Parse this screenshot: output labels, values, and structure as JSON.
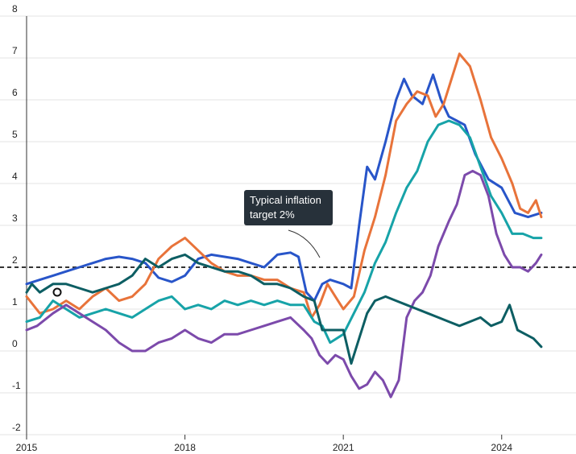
{
  "chart_data": {
    "type": "line",
    "title": "",
    "xlabel": "",
    "ylabel": "",
    "xlim": [
      2015.0,
      2024.95
    ],
    "ylim": [
      -2,
      8
    ],
    "y_ticks": [
      "-2",
      "-1",
      "0",
      "1",
      "2",
      "3",
      "4",
      "5",
      "6",
      "7",
      "8"
    ],
    "x_ticks": [
      "2015",
      "2018",
      "2021",
      "2024"
    ],
    "grid": true,
    "reference_line": {
      "value": 2,
      "style": "dashed"
    },
    "annotation": {
      "line1": "Typical inflation",
      "line2": "target 2%"
    },
    "series": [
      {
        "color": "#2855c9",
        "points": [
          [
            2015.0,
            1.6
          ],
          [
            2015.25,
            1.7
          ],
          [
            2015.5,
            1.8
          ],
          [
            2015.75,
            1.9
          ],
          [
            2016.0,
            2.0
          ],
          [
            2016.25,
            2.1
          ],
          [
            2016.5,
            2.2
          ],
          [
            2016.75,
            2.25
          ],
          [
            2017.0,
            2.2
          ],
          [
            2017.25,
            2.1
          ],
          [
            2017.5,
            1.75
          ],
          [
            2017.75,
            1.65
          ],
          [
            2018.0,
            1.8
          ],
          [
            2018.25,
            2.2
          ],
          [
            2018.5,
            2.3
          ],
          [
            2018.75,
            2.25
          ],
          [
            2019.0,
            2.2
          ],
          [
            2019.25,
            2.1
          ],
          [
            2019.5,
            2.0
          ],
          [
            2019.75,
            2.3
          ],
          [
            2020.0,
            2.35
          ],
          [
            2020.15,
            2.25
          ],
          [
            2020.3,
            1.4
          ],
          [
            2020.45,
            1.2
          ],
          [
            2020.6,
            1.6
          ],
          [
            2020.75,
            1.7
          ],
          [
            2021.0,
            1.6
          ],
          [
            2021.15,
            1.5
          ],
          [
            2021.3,
            3.0
          ],
          [
            2021.45,
            4.4
          ],
          [
            2021.6,
            4.1
          ],
          [
            2021.8,
            5.0
          ],
          [
            2022.0,
            6.0
          ],
          [
            2022.15,
            6.5
          ],
          [
            2022.3,
            6.1
          ],
          [
            2022.5,
            5.9
          ],
          [
            2022.7,
            6.6
          ],
          [
            2022.85,
            6.0
          ],
          [
            2023.0,
            5.6
          ],
          [
            2023.15,
            5.5
          ],
          [
            2023.3,
            5.4
          ],
          [
            2023.5,
            4.7
          ],
          [
            2023.75,
            4.1
          ],
          [
            2024.0,
            3.9
          ],
          [
            2024.25,
            3.3
          ],
          [
            2024.5,
            3.2
          ],
          [
            2024.75,
            3.3
          ]
        ]
      },
      {
        "color": "#e8733a",
        "points": [
          [
            2015.0,
            1.3
          ],
          [
            2015.25,
            0.9
          ],
          [
            2015.5,
            1.0
          ],
          [
            2015.75,
            1.2
          ],
          [
            2016.0,
            1.0
          ],
          [
            2016.25,
            1.3
          ],
          [
            2016.5,
            1.5
          ],
          [
            2016.75,
            1.2
          ],
          [
            2017.0,
            1.3
          ],
          [
            2017.25,
            1.6
          ],
          [
            2017.5,
            2.2
          ],
          [
            2017.75,
            2.5
          ],
          [
            2018.0,
            2.7
          ],
          [
            2018.25,
            2.4
          ],
          [
            2018.5,
            2.1
          ],
          [
            2018.75,
            1.9
          ],
          [
            2019.0,
            1.8
          ],
          [
            2019.25,
            1.8
          ],
          [
            2019.5,
            1.7
          ],
          [
            2019.75,
            1.7
          ],
          [
            2020.0,
            1.5
          ],
          [
            2020.25,
            1.4
          ],
          [
            2020.4,
            0.8
          ],
          [
            2020.55,
            1.1
          ],
          [
            2020.7,
            1.6
          ],
          [
            2020.85,
            1.3
          ],
          [
            2021.0,
            1.0
          ],
          [
            2021.2,
            1.3
          ],
          [
            2021.4,
            2.4
          ],
          [
            2021.6,
            3.2
          ],
          [
            2021.8,
            4.2
          ],
          [
            2022.0,
            5.5
          ],
          [
            2022.2,
            5.9
          ],
          [
            2022.4,
            6.2
          ],
          [
            2022.6,
            6.1
          ],
          [
            2022.75,
            5.6
          ],
          [
            2022.9,
            5.9
          ],
          [
            2023.05,
            6.5
          ],
          [
            2023.2,
            7.1
          ],
          [
            2023.4,
            6.8
          ],
          [
            2023.6,
            6.0
          ],
          [
            2023.8,
            5.1
          ],
          [
            2024.0,
            4.6
          ],
          [
            2024.2,
            4.0
          ],
          [
            2024.35,
            3.4
          ],
          [
            2024.5,
            3.3
          ],
          [
            2024.65,
            3.6
          ],
          [
            2024.75,
            3.2
          ]
        ]
      },
      {
        "color": "#17a3a8",
        "points": [
          [
            2015.0,
            0.7
          ],
          [
            2015.25,
            0.8
          ],
          [
            2015.5,
            1.2
          ],
          [
            2015.75,
            1.0
          ],
          [
            2016.0,
            0.8
          ],
          [
            2016.25,
            0.9
          ],
          [
            2016.5,
            1.0
          ],
          [
            2016.75,
            0.9
          ],
          [
            2017.0,
            0.8
          ],
          [
            2017.25,
            1.0
          ],
          [
            2017.5,
            1.2
          ],
          [
            2017.75,
            1.3
          ],
          [
            2018.0,
            1.0
          ],
          [
            2018.25,
            1.1
          ],
          [
            2018.5,
            1.0
          ],
          [
            2018.75,
            1.2
          ],
          [
            2019.0,
            1.1
          ],
          [
            2019.25,
            1.2
          ],
          [
            2019.5,
            1.1
          ],
          [
            2019.75,
            1.2
          ],
          [
            2020.0,
            1.1
          ],
          [
            2020.25,
            1.1
          ],
          [
            2020.45,
            0.7
          ],
          [
            2020.6,
            0.6
          ],
          [
            2020.75,
            0.2
          ],
          [
            2021.0,
            0.4
          ],
          [
            2021.2,
            0.9
          ],
          [
            2021.4,
            1.4
          ],
          [
            2021.6,
            2.1
          ],
          [
            2021.8,
            2.6
          ],
          [
            2022.0,
            3.3
          ],
          [
            2022.2,
            3.9
          ],
          [
            2022.4,
            4.3
          ],
          [
            2022.6,
            5.0
          ],
          [
            2022.8,
            5.4
          ],
          [
            2023.0,
            5.5
          ],
          [
            2023.2,
            5.4
          ],
          [
            2023.4,
            5.1
          ],
          [
            2023.6,
            4.4
          ],
          [
            2023.8,
            3.7
          ],
          [
            2024.0,
            3.3
          ],
          [
            2024.2,
            2.8
          ],
          [
            2024.4,
            2.8
          ],
          [
            2024.6,
            2.7
          ],
          [
            2024.75,
            2.7
          ]
        ]
      },
      {
        "color": "#7c4aab",
        "points": [
          [
            2015.0,
            0.5
          ],
          [
            2015.2,
            0.6
          ],
          [
            2015.5,
            0.9
          ],
          [
            2015.75,
            1.1
          ],
          [
            2016.0,
            0.9
          ],
          [
            2016.25,
            0.7
          ],
          [
            2016.5,
            0.5
          ],
          [
            2016.75,
            0.2
          ],
          [
            2017.0,
            0.0
          ],
          [
            2017.25,
            0.0
          ],
          [
            2017.5,
            0.2
          ],
          [
            2017.75,
            0.3
          ],
          [
            2018.0,
            0.5
          ],
          [
            2018.25,
            0.3
          ],
          [
            2018.5,
            0.2
          ],
          [
            2018.75,
            0.4
          ],
          [
            2019.0,
            0.4
          ],
          [
            2019.25,
            0.5
          ],
          [
            2019.5,
            0.6
          ],
          [
            2019.75,
            0.7
          ],
          [
            2020.0,
            0.8
          ],
          [
            2020.25,
            0.5
          ],
          [
            2020.4,
            0.3
          ],
          [
            2020.55,
            -0.1
          ],
          [
            2020.7,
            -0.3
          ],
          [
            2020.85,
            -0.1
          ],
          [
            2021.0,
            -0.2
          ],
          [
            2021.15,
            -0.6
          ],
          [
            2021.3,
            -0.9
          ],
          [
            2021.45,
            -0.8
          ],
          [
            2021.6,
            -0.5
          ],
          [
            2021.75,
            -0.7
          ],
          [
            2021.9,
            -1.1
          ],
          [
            2022.05,
            -0.7
          ],
          [
            2022.2,
            0.8
          ],
          [
            2022.35,
            1.2
          ],
          [
            2022.5,
            1.4
          ],
          [
            2022.65,
            1.8
          ],
          [
            2022.8,
            2.5
          ],
          [
            2023.0,
            3.1
          ],
          [
            2023.15,
            3.5
          ],
          [
            2023.3,
            4.2
          ],
          [
            2023.45,
            4.3
          ],
          [
            2023.6,
            4.2
          ],
          [
            2023.75,
            3.7
          ],
          [
            2023.9,
            2.8
          ],
          [
            2024.05,
            2.3
          ],
          [
            2024.2,
            2.0
          ],
          [
            2024.35,
            2.0
          ],
          [
            2024.5,
            1.9
          ],
          [
            2024.65,
            2.1
          ],
          [
            2024.75,
            2.3
          ]
        ]
      },
      {
        "color": "#0d5e63",
        "points": [
          [
            2015.0,
            1.4
          ],
          [
            2015.1,
            1.6
          ],
          [
            2015.25,
            1.4
          ],
          [
            2015.5,
            1.6
          ],
          [
            2015.75,
            1.6
          ],
          [
            2016.0,
            1.5
          ],
          [
            2016.25,
            1.4
          ],
          [
            2016.5,
            1.5
          ],
          [
            2016.75,
            1.6
          ],
          [
            2017.0,
            1.8
          ],
          [
            2017.25,
            2.2
          ],
          [
            2017.5,
            2.0
          ],
          [
            2017.75,
            2.2
          ],
          [
            2018.0,
            2.3
          ],
          [
            2018.25,
            2.1
          ],
          [
            2018.5,
            2.0
          ],
          [
            2018.75,
            1.9
          ],
          [
            2019.0,
            1.9
          ],
          [
            2019.25,
            1.8
          ],
          [
            2019.5,
            1.6
          ],
          [
            2019.75,
            1.6
          ],
          [
            2020.0,
            1.5
          ],
          [
            2020.25,
            1.3
          ],
          [
            2020.45,
            1.2
          ],
          [
            2020.6,
            0.5
          ],
          [
            2020.75,
            0.5
          ],
          [
            2021.0,
            0.5
          ],
          [
            2021.15,
            -0.3
          ],
          [
            2021.3,
            0.3
          ],
          [
            2021.45,
            0.9
          ],
          [
            2021.6,
            1.2
          ],
          [
            2021.8,
            1.3
          ],
          [
            2022.0,
            1.2
          ],
          [
            2022.2,
            1.1
          ],
          [
            2022.4,
            1.0
          ],
          [
            2022.6,
            0.9
          ],
          [
            2022.8,
            0.8
          ],
          [
            2023.0,
            0.7
          ],
          [
            2023.2,
            0.6
          ],
          [
            2023.4,
            0.7
          ],
          [
            2023.6,
            0.8
          ],
          [
            2023.8,
            0.6
          ],
          [
            2024.0,
            0.7
          ],
          [
            2024.15,
            1.1
          ],
          [
            2024.3,
            0.5
          ],
          [
            2024.45,
            0.4
          ],
          [
            2024.6,
            0.3
          ],
          [
            2024.75,
            0.1
          ]
        ]
      }
    ]
  }
}
